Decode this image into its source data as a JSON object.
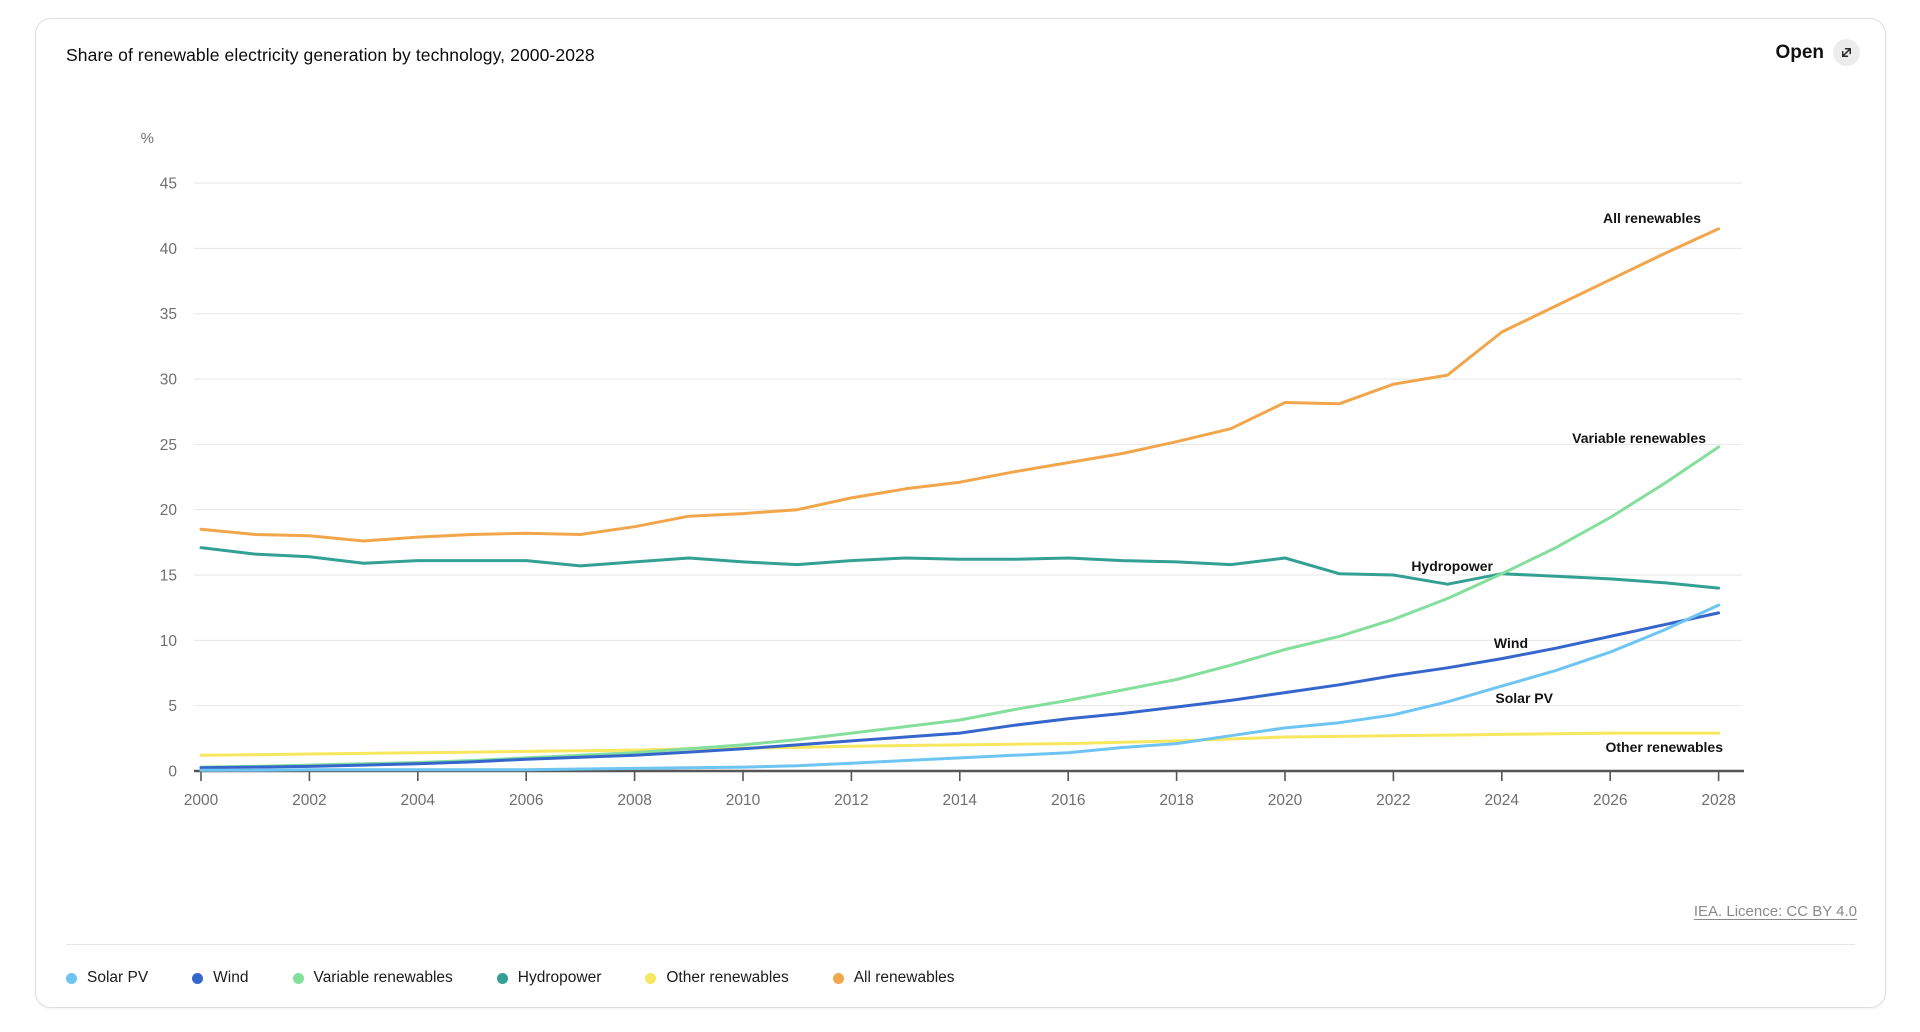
{
  "header": {
    "title": "Share of renewable electricity generation by technology, 2000-2028",
    "open_label": "Open"
  },
  "footer": {
    "licence": "IEA. Licence: CC BY 4.0"
  },
  "legend": {
    "items": [
      {
        "label": "Solar PV",
        "color": "#6EC4F2"
      },
      {
        "label": "Wind",
        "color": "#3566CB"
      },
      {
        "label": "Variable renewables",
        "color": "#83DF9B"
      },
      {
        "label": "Hydropower",
        "color": "#33A094"
      },
      {
        "label": "Other renewables",
        "color": "#F7E75E"
      },
      {
        "label": "All renewables",
        "color": "#F2A64C"
      }
    ]
  },
  "chart_data": {
    "type": "line",
    "title": "Share of renewable electricity generation by technology, 2000-2028",
    "unit_label": "%",
    "xlabel": "",
    "ylabel": "%",
    "ylim": [
      0,
      45
    ],
    "grid": true,
    "legend_position": "bottom",
    "x": [
      2000,
      2001,
      2002,
      2003,
      2004,
      2005,
      2006,
      2007,
      2008,
      2009,
      2010,
      2011,
      2012,
      2013,
      2014,
      2015,
      2016,
      2017,
      2018,
      2019,
      2020,
      2021,
      2022,
      2023,
      2024,
      2025,
      2026,
      2027,
      2028
    ],
    "x_ticks": [
      2000,
      2002,
      2004,
      2006,
      2008,
      2010,
      2012,
      2014,
      2016,
      2018,
      2020,
      2022,
      2024,
      2026,
      2028
    ],
    "y_ticks": [
      0,
      5,
      10,
      15,
      20,
      25,
      30,
      35,
      40,
      45
    ],
    "series": [
      {
        "name": "Solar PV",
        "color": "#6EC4F2",
        "values": [
          0.05,
          0.05,
          0.1,
          0.1,
          0.1,
          0.1,
          0.1,
          0.15,
          0.2,
          0.25,
          0.3,
          0.4,
          0.6,
          0.8,
          1.0,
          1.2,
          1.4,
          1.8,
          2.1,
          2.7,
          3.3,
          3.7,
          4.3,
          5.3,
          6.5,
          7.7,
          9.1,
          10.8,
          12.7
        ]
      },
      {
        "name": "Wind",
        "color": "#3566CB",
        "values": [
          0.25,
          0.3,
          0.35,
          0.45,
          0.55,
          0.7,
          0.9,
          1.05,
          1.2,
          1.45,
          1.7,
          2.0,
          2.3,
          2.6,
          2.9,
          3.5,
          4.0,
          4.4,
          4.9,
          5.4,
          6.0,
          6.6,
          7.3,
          7.9,
          8.6,
          9.4,
          10.3,
          11.2,
          12.1
        ]
      },
      {
        "name": "Variable renewables",
        "color": "#83DF9B",
        "values": [
          0.3,
          0.35,
          0.45,
          0.55,
          0.65,
          0.8,
          1.0,
          1.2,
          1.4,
          1.7,
          2.0,
          2.4,
          2.9,
          3.4,
          3.9,
          4.7,
          5.4,
          6.2,
          7.0,
          8.1,
          9.3,
          10.3,
          11.6,
          13.2,
          15.1,
          17.1,
          19.4,
          22.0,
          24.8
        ]
      },
      {
        "name": "Hydropower",
        "color": "#33A094",
        "values": [
          17.1,
          16.6,
          16.4,
          15.9,
          16.1,
          16.1,
          16.1,
          15.7,
          16.0,
          16.3,
          16.0,
          15.8,
          16.1,
          16.3,
          16.2,
          16.2,
          16.3,
          16.1,
          16.0,
          15.8,
          16.3,
          15.1,
          15.0,
          14.3,
          15.1,
          14.9,
          14.7,
          14.4,
          14.0
        ]
      },
      {
        "name": "Other renewables",
        "color": "#F7E75E",
        "values": [
          1.2,
          1.25,
          1.3,
          1.35,
          1.4,
          1.45,
          1.5,
          1.55,
          1.6,
          1.7,
          1.75,
          1.8,
          1.9,
          1.95,
          2.0,
          2.05,
          2.1,
          2.2,
          2.3,
          2.45,
          2.6,
          2.65,
          2.7,
          2.75,
          2.8,
          2.85,
          2.9,
          2.9,
          2.9
        ]
      },
      {
        "name": "All renewables",
        "color": "#F2A64C",
        "values": [
          18.5,
          18.1,
          18.0,
          17.6,
          17.9,
          18.1,
          18.2,
          18.1,
          18.7,
          19.5,
          19.7,
          20.0,
          20.9,
          21.6,
          22.1,
          22.9,
          23.6,
          24.3,
          25.2,
          26.2,
          28.2,
          28.1,
          29.6,
          30.3,
          33.6,
          35.6,
          37.6,
          39.6,
          41.5
        ]
      }
    ],
    "line_labels": [
      "All renewables",
      "Variable renewables",
      "Hydropower",
      "Wind",
      "Solar PV",
      "Other renewables"
    ]
  }
}
